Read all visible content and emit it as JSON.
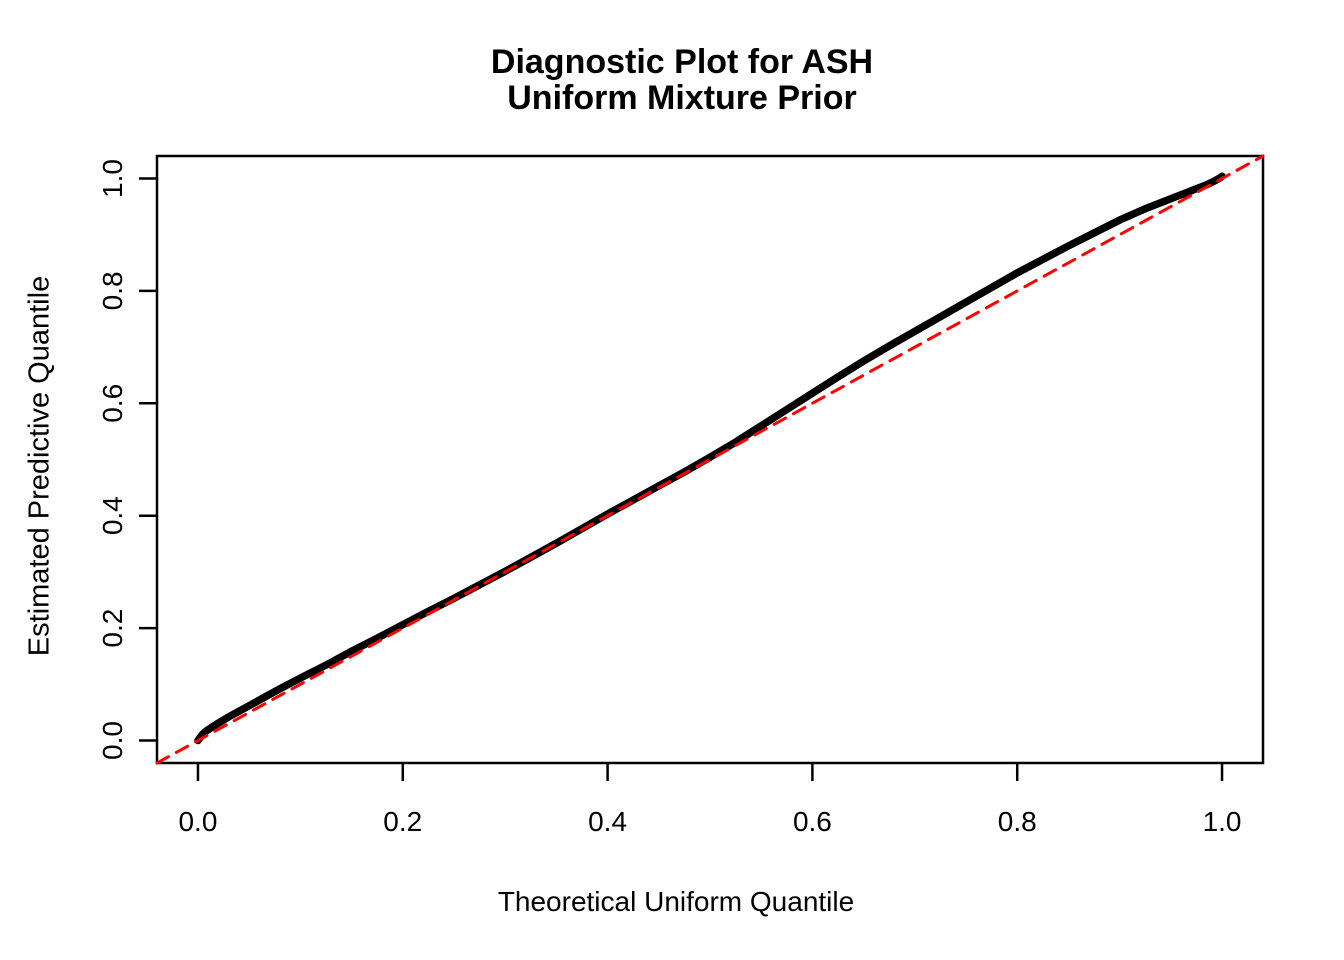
{
  "figure": {
    "title_line1": "Diagnostic Plot for ASH",
    "title_line2": "Uniform Mixture Prior",
    "background_color": "#FFFFFF"
  },
  "chart_data": {
    "type": "line",
    "title": "Diagnostic Plot for ASH\nUniform Mixture Prior",
    "xlabel": "Theoretical Uniform Quantile",
    "ylabel": "Estimated Predictive Quantile",
    "xlim": [
      -0.04,
      1.04
    ],
    "ylim": [
      -0.04,
      1.04
    ],
    "grid": false,
    "legend_position": "none",
    "x_ticks": [
      0.0,
      0.2,
      0.4,
      0.6,
      0.8,
      1.0
    ],
    "y_ticks": [
      0.0,
      0.2,
      0.4,
      0.6,
      0.8,
      1.0
    ],
    "x_tick_labels": [
      "0.0",
      "0.2",
      "0.4",
      "0.6",
      "0.8",
      "1.0"
    ],
    "y_tick_labels": [
      "0.0",
      "0.2",
      "0.4",
      "0.6",
      "0.8",
      "1.0"
    ],
    "axis_color": "#000000",
    "series": [
      {
        "name": "estimated-predictive-quantile-curve",
        "type": "line",
        "color": "#000000",
        "line_width": 7.5,
        "dashed": false,
        "points": [
          [
            0.0,
            0.0
          ],
          [
            0.004,
            0.01
          ],
          [
            0.008,
            0.017
          ],
          [
            0.013,
            0.023
          ],
          [
            0.02,
            0.031
          ],
          [
            0.03,
            0.042
          ],
          [
            0.04,
            0.052
          ],
          [
            0.05,
            0.062
          ],
          [
            0.065,
            0.077
          ],
          [
            0.08,
            0.092
          ],
          [
            0.1,
            0.111
          ],
          [
            0.115,
            0.125
          ],
          [
            0.13,
            0.139
          ],
          [
            0.15,
            0.159
          ],
          [
            0.175,
            0.182
          ],
          [
            0.2,
            0.206
          ],
          [
            0.225,
            0.23
          ],
          [
            0.25,
            0.253
          ],
          [
            0.275,
            0.277
          ],
          [
            0.3,
            0.301
          ],
          [
            0.325,
            0.326
          ],
          [
            0.35,
            0.351
          ],
          [
            0.375,
            0.377
          ],
          [
            0.4,
            0.403
          ],
          [
            0.425,
            0.428
          ],
          [
            0.45,
            0.453
          ],
          [
            0.475,
            0.478
          ],
          [
            0.5,
            0.504
          ],
          [
            0.525,
            0.531
          ],
          [
            0.55,
            0.56
          ],
          [
            0.575,
            0.589
          ],
          [
            0.6,
            0.618
          ],
          [
            0.625,
            0.647
          ],
          [
            0.65,
            0.675
          ],
          [
            0.675,
            0.702
          ],
          [
            0.7,
            0.728
          ],
          [
            0.725,
            0.754
          ],
          [
            0.75,
            0.78
          ],
          [
            0.775,
            0.806
          ],
          [
            0.8,
            0.832
          ],
          [
            0.825,
            0.856
          ],
          [
            0.85,
            0.88
          ],
          [
            0.875,
            0.903
          ],
          [
            0.9,
            0.926
          ],
          [
            0.925,
            0.946
          ],
          [
            0.95,
            0.964
          ],
          [
            0.97,
            0.978
          ],
          [
            0.985,
            0.989
          ],
          [
            0.993,
            0.996
          ],
          [
            0.998,
            1.001
          ],
          [
            1.0,
            1.004
          ]
        ]
      },
      {
        "name": "identity-reference-line",
        "type": "line",
        "color": "#FF0000",
        "line_width": 3,
        "dashed": true,
        "dash_pattern": [
          13,
          9
        ],
        "points": [
          [
            -0.04,
            -0.04
          ],
          [
            1.04,
            1.04
          ]
        ]
      }
    ]
  }
}
